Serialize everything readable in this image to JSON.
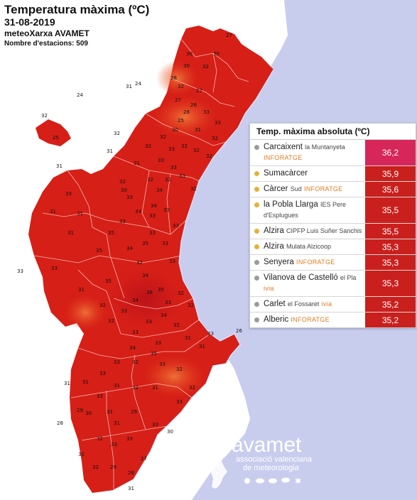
{
  "header": {
    "title": "Temperatura màxima (ºC)",
    "date": "31-08-2019",
    "source": "meteoXarxa AVAMET",
    "stations": "Nombre d'estacions: 509"
  },
  "table": {
    "title": "Temp. màxima absoluta (ºC)",
    "rows": [
      {
        "name": "Carcaixent",
        "detail": "la Muntanyeta",
        "network": "INFORATGE",
        "value": "36,2",
        "dot": "#9b9b9b",
        "color": "#d6265a"
      },
      {
        "name": "Sumacàrcer",
        "detail": "",
        "network": "",
        "value": "35,9",
        "dot": "#e2b23a",
        "color": "#c9201e"
      },
      {
        "name": "Càrcer",
        "detail": "Sud",
        "network": "INFORATGE",
        "value": "35,6",
        "dot": "#e2b23a",
        "color": "#c9201e"
      },
      {
        "name": "la Pobla Llarga",
        "detail": "IES Pere d'Esplugues",
        "network": "",
        "value": "35,5",
        "dot": "#e2b23a",
        "color": "#c9201e"
      },
      {
        "name": "Alzira",
        "detail": "CIPFP Luis Suñer Sanchis",
        "network": "",
        "value": "35,5",
        "dot": "#e2b23a",
        "color": "#c9201e"
      },
      {
        "name": "Alzira",
        "detail": "Mulata Alzicoop",
        "network": "",
        "value": "35,3",
        "dot": "#e2b23a",
        "color": "#c9201e"
      },
      {
        "name": "Senyera",
        "detail": "",
        "network": "INFORATGE",
        "value": "35,3",
        "dot": "#9b9b9b",
        "color": "#c9201e"
      },
      {
        "name": "Vilanova de Castelló",
        "detail": "el Pla",
        "network": "ivia",
        "value": "35,3",
        "dot": "#9b9b9b",
        "color": "#c9201e"
      },
      {
        "name": "Carlet",
        "detail": "el Fossaret",
        "network": "ivia",
        "value": "35,2",
        "dot": "#9b9b9b",
        "color": "#c9201e"
      },
      {
        "name": "Alberic",
        "detail": "",
        "network": "INFORATGE",
        "value": "35,2",
        "dot": "#9b9b9b",
        "color": "#c9201e"
      }
    ]
  },
  "logo": {
    "brand": "avamet",
    "line1": "associació valenciana",
    "line2": "de meteorologia"
  },
  "map_labels": [
    "27",
    "30",
    "30",
    "32",
    "30",
    "28",
    "32",
    "27",
    "27",
    "26",
    "28",
    "25",
    "33",
    "30",
    "33",
    "31",
    "32",
    "32",
    "32",
    "33",
    "32",
    "32",
    "33",
    "32",
    "33",
    "31",
    "31",
    "32",
    "31",
    "32",
    "32",
    "33",
    "34",
    "32",
    "33",
    "34",
    "33",
    "33",
    "33",
    "33",
    "31",
    "31",
    "33",
    "34",
    "35",
    "33",
    "31",
    "35",
    "34",
    "35",
    "33",
    "32",
    "33",
    "33",
    "34",
    "35",
    "36",
    "35",
    "34",
    "33",
    "32",
    "32",
    "33",
    "34",
    "33",
    "32",
    "31",
    "32",
    "33",
    "32",
    "31",
    "33",
    "31",
    "33",
    "35",
    "34",
    "33",
    "33",
    "32",
    "33",
    "32",
    "31",
    "31",
    "29",
    "28",
    "33",
    "31",
    "32",
    "31",
    "30",
    "31",
    "29",
    "31",
    "33",
    "33",
    "32",
    "33",
    "33",
    "32",
    "30",
    "27",
    "26",
    "29",
    "31",
    "32",
    "31",
    "30",
    "33",
    "31",
    "24",
    "24",
    "32",
    "25",
    "32",
    "26"
  ],
  "colors": {
    "sea": "#c8cdee",
    "land_hot": "#d81f18",
    "land_warm": "#ea4a22",
    "table_top": "#d6265a",
    "table_rest": "#c9201e"
  }
}
